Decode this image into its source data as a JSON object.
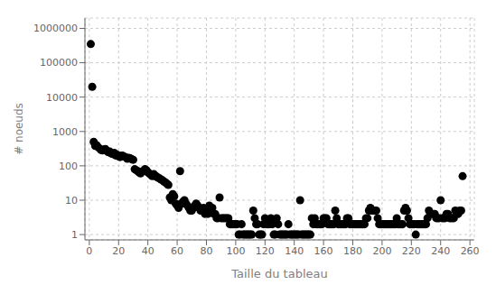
{
  "chart_data": {
    "type": "scatter",
    "xlabel": "Taille du tableau",
    "ylabel": "# noeuds",
    "xlim": [
      -3,
      263
    ],
    "ylim": [
      0.7,
      2000000
    ],
    "xticks": [
      0,
      20,
      40,
      60,
      80,
      100,
      120,
      140,
      160,
      180,
      200,
      220,
      240,
      260
    ],
    "yticks": [
      1,
      10,
      100,
      1000,
      10000,
      100000,
      1000000
    ],
    "log": "y",
    "grid": true,
    "color": "#000000",
    "x": [
      1,
      2,
      3,
      4,
      5,
      6,
      7,
      8,
      9,
      10,
      11,
      12,
      13,
      14,
      15,
      16,
      17,
      18,
      19,
      20,
      21,
      22,
      23,
      24,
      25,
      26,
      27,
      28,
      29,
      30,
      31,
      32,
      33,
      34,
      35,
      36,
      37,
      38,
      39,
      40,
      41,
      42,
      43,
      44,
      45,
      46,
      47,
      48,
      49,
      50,
      51,
      52,
      53,
      54,
      55,
      56,
      57,
      58,
      59,
      60,
      61,
      62,
      63,
      64,
      65,
      66,
      67,
      68,
      69,
      70,
      71,
      72,
      73,
      74,
      75,
      76,
      77,
      78,
      79,
      80,
      81,
      82,
      83,
      84,
      85,
      86,
      87,
      88,
      89,
      90,
      91,
      92,
      93,
      94,
      95,
      96,
      97,
      98,
      99,
      100,
      101,
      102,
      103,
      104,
      105,
      106,
      107,
      108,
      109,
      110,
      111,
      112,
      113,
      114,
      115,
      116,
      117,
      118,
      119,
      120,
      121,
      122,
      123,
      124,
      125,
      126,
      127,
      128,
      129,
      130,
      131,
      132,
      133,
      134,
      135,
      136,
      137,
      138,
      139,
      140,
      141,
      142,
      143,
      144,
      145,
      146,
      147,
      148,
      149,
      150,
      151,
      152,
      153,
      154,
      155,
      156,
      157,
      158,
      159,
      160,
      161,
      162,
      163,
      164,
      165,
      166,
      167,
      168,
      169,
      170,
      171,
      172,
      173,
      174,
      175,
      176,
      177,
      178,
      179,
      180,
      181,
      182,
      183,
      184,
      185,
      186,
      187,
      188,
      189,
      190,
      191,
      192,
      193,
      194,
      195,
      196,
      197,
      198,
      199,
      200,
      201,
      202,
      203,
      204,
      205,
      206,
      207,
      208,
      209,
      210,
      211,
      212,
      213,
      214,
      215,
      216,
      217,
      218,
      219,
      220,
      221,
      222,
      223,
      224,
      225,
      226,
      227,
      228,
      229,
      230,
      231,
      232,
      233,
      234,
      235,
      236,
      237,
      238,
      239,
      240,
      241,
      242,
      243,
      244,
      245,
      246,
      247,
      248,
      249,
      250,
      251,
      252,
      253,
      254,
      255
    ],
    "values": [
      350000,
      20000,
      500,
      380,
      400,
      350,
      320,
      290,
      280,
      300,
      310,
      270,
      250,
      260,
      230,
      220,
      240,
      200,
      210,
      190,
      180,
      200,
      195,
      185,
      175,
      160,
      170,
      165,
      155,
      150,
      80,
      75,
      70,
      65,
      60,
      68,
      72,
      80,
      75,
      65,
      60,
      55,
      50,
      58,
      52,
      48,
      45,
      43,
      40,
      38,
      35,
      33,
      30,
      28,
      12,
      10,
      15,
      13,
      8,
      7,
      6,
      70,
      8,
      9,
      10,
      8,
      7,
      6,
      5,
      5,
      6,
      7,
      8,
      7,
      6,
      5,
      5,
      6,
      4,
      5,
      4,
      7,
      5,
      6,
      4,
      4,
      3,
      3,
      12,
      3,
      3,
      3,
      3,
      3,
      3,
      2,
      2,
      2,
      2,
      2,
      2,
      1,
      1,
      2,
      1,
      1,
      1,
      1,
      1,
      1,
      1,
      5,
      3,
      2,
      2,
      1,
      1,
      1,
      2,
      3,
      2,
      2,
      2,
      3,
      2,
      1,
      1,
      3,
      2,
      1,
      1,
      1,
      1,
      1,
      1,
      2,
      1,
      1,
      1,
      1,
      1,
      1,
      1,
      10,
      1,
      1,
      1,
      1,
      1,
      1,
      1,
      3,
      2,
      3,
      2,
      2,
      2,
      2,
      2,
      3,
      3,
      3,
      2,
      2,
      2,
      2,
      2,
      5,
      3,
      2,
      2,
      2,
      2,
      2,
      2,
      3,
      3,
      2,
      2,
      2,
      2,
      2,
      2,
      2,
      2,
      2,
      2,
      2,
      3,
      3,
      5,
      6,
      5,
      5,
      5,
      5,
      3,
      2,
      2,
      2,
      2,
      2,
      2,
      2,
      2,
      2,
      2,
      2,
      2,
      3,
      2,
      2,
      2,
      2,
      5,
      6,
      5,
      3,
      2,
      2,
      2,
      2,
      1,
      2,
      2,
      2,
      2,
      2,
      2,
      2,
      3,
      5,
      4,
      4,
      4,
      4,
      3,
      3,
      3,
      10,
      3,
      3,
      3,
      4,
      4,
      3,
      3,
      3,
      3,
      5,
      4,
      4,
      5,
      5,
      50
    ]
  }
}
